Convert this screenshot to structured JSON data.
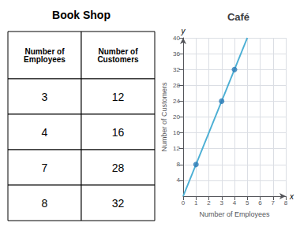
{
  "chart_data": [
    {
      "type": "table",
      "title": "Book Shop",
      "columns": [
        "Number of\nEmployees",
        "Number of\nCustomers"
      ],
      "rows": [
        [
          3,
          12
        ],
        [
          4,
          16
        ],
        [
          7,
          28
        ],
        [
          8,
          32
        ]
      ]
    },
    {
      "type": "scatter",
      "title": "Café",
      "x_label": "Number of Employees",
      "y_label": "Number of Customers",
      "annotations": [
        "y",
        "x"
      ],
      "series": [
        {
          "type": "line",
          "color": "#4bafd4",
          "x": [
            0,
            5.0
          ],
          "values": [
            0,
            40.0
          ]
        },
        {
          "type": "scatter",
          "color": "#2a7bb5",
          "x": [
            1,
            3,
            4
          ],
          "values": [
            8,
            24,
            32
          ]
        }
      ],
      "xlim": [
        0,
        8
      ],
      "ylim": [
        0,
        40
      ],
      "xticks": [
        0,
        1,
        2,
        3,
        4,
        5,
        6,
        7,
        8
      ],
      "yticks": [
        4,
        8,
        12,
        16,
        20,
        24,
        28,
        32,
        36,
        40
      ],
      "grid": true
    }
  ]
}
